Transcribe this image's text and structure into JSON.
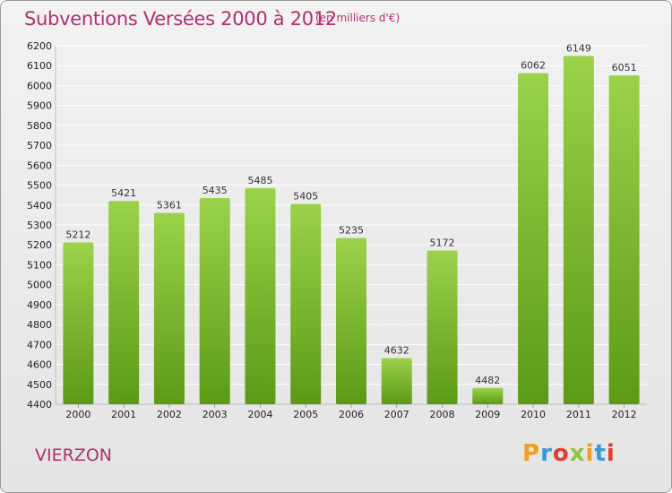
{
  "title": "Subventions Versées 2000 à 2012",
  "subtitle": "(en milliers d'€)",
  "commune": "VIERZON",
  "logo": {
    "letters": [
      "P",
      "r",
      "o",
      "x",
      "i",
      "t",
      "i"
    ],
    "colors": [
      "#f0a020",
      "#3a9ad9",
      "#e2402f",
      "#8cc63f",
      "#f0a020",
      "#3a9ad9",
      "#e2402f"
    ]
  },
  "colors": {
    "bar_top": "#9bd24a",
    "bar_bottom": "#5c9a16",
    "grid": "#ffffff",
    "title": "#b0306e"
  },
  "chart_data": {
    "type": "bar",
    "categories": [
      "2000",
      "2001",
      "2002",
      "2003",
      "2004",
      "2005",
      "2006",
      "2007",
      "2008",
      "2009",
      "2010",
      "2011",
      "2012"
    ],
    "values": [
      5212,
      5421,
      5361,
      5435,
      5485,
      5405,
      5235,
      4632,
      5172,
      4482,
      6062,
      6149,
      6051
    ],
    "ylim": [
      4400,
      6200
    ],
    "yticks": [
      4400,
      4500,
      4600,
      4700,
      4800,
      4900,
      5000,
      5100,
      5200,
      5300,
      5400,
      5500,
      5600,
      5700,
      5800,
      5900,
      6000,
      6100,
      6200
    ],
    "grid": true,
    "data_labels": true
  }
}
